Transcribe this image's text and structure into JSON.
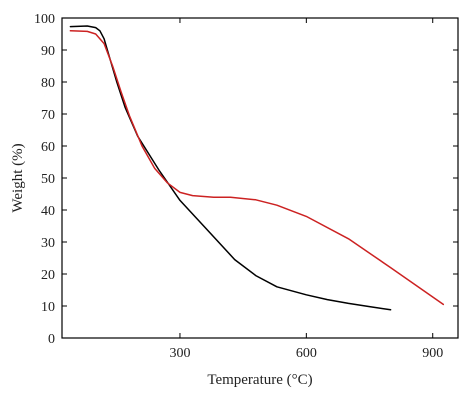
{
  "chart_data": {
    "type": "line",
    "title": "",
    "xlabel": "Temperature (°C)",
    "ylabel": "Weight (%)",
    "xlim": [
      20,
      960
    ],
    "ylim": [
      0,
      100
    ],
    "x_ticks": [
      300,
      600,
      900
    ],
    "y_ticks": [
      0,
      10,
      20,
      30,
      40,
      50,
      60,
      70,
      80,
      90,
      100
    ],
    "grid": false,
    "legend": "none",
    "series": [
      {
        "color": "#000000",
        "x": [
          40,
          80,
          100,
          110,
          120,
          130,
          150,
          170,
          200,
          250,
          300,
          360,
          430,
          480,
          530,
          600,
          650,
          700,
          750,
          800
        ],
        "y": [
          97.3,
          97.5,
          97.0,
          96.0,
          93.5,
          89.0,
          80.0,
          72.0,
          63.0,
          52.5,
          43.0,
          34.5,
          24.5,
          19.5,
          16.0,
          13.5,
          12.0,
          10.8,
          9.8,
          8.8
        ]
      },
      {
        "color": "#cc2222",
        "x": [
          40,
          80,
          100,
          120,
          140,
          160,
          180,
          210,
          240,
          270,
          300,
          330,
          380,
          420,
          480,
          530,
          600,
          700,
          800,
          925
        ],
        "y": [
          96.0,
          95.8,
          95.0,
          92.0,
          85.0,
          77.0,
          69.5,
          60.0,
          53.0,
          48.5,
          45.5,
          44.5,
          44.0,
          44.0,
          43.2,
          41.5,
          38.0,
          31.0,
          22.0,
          10.5
        ]
      }
    ]
  }
}
